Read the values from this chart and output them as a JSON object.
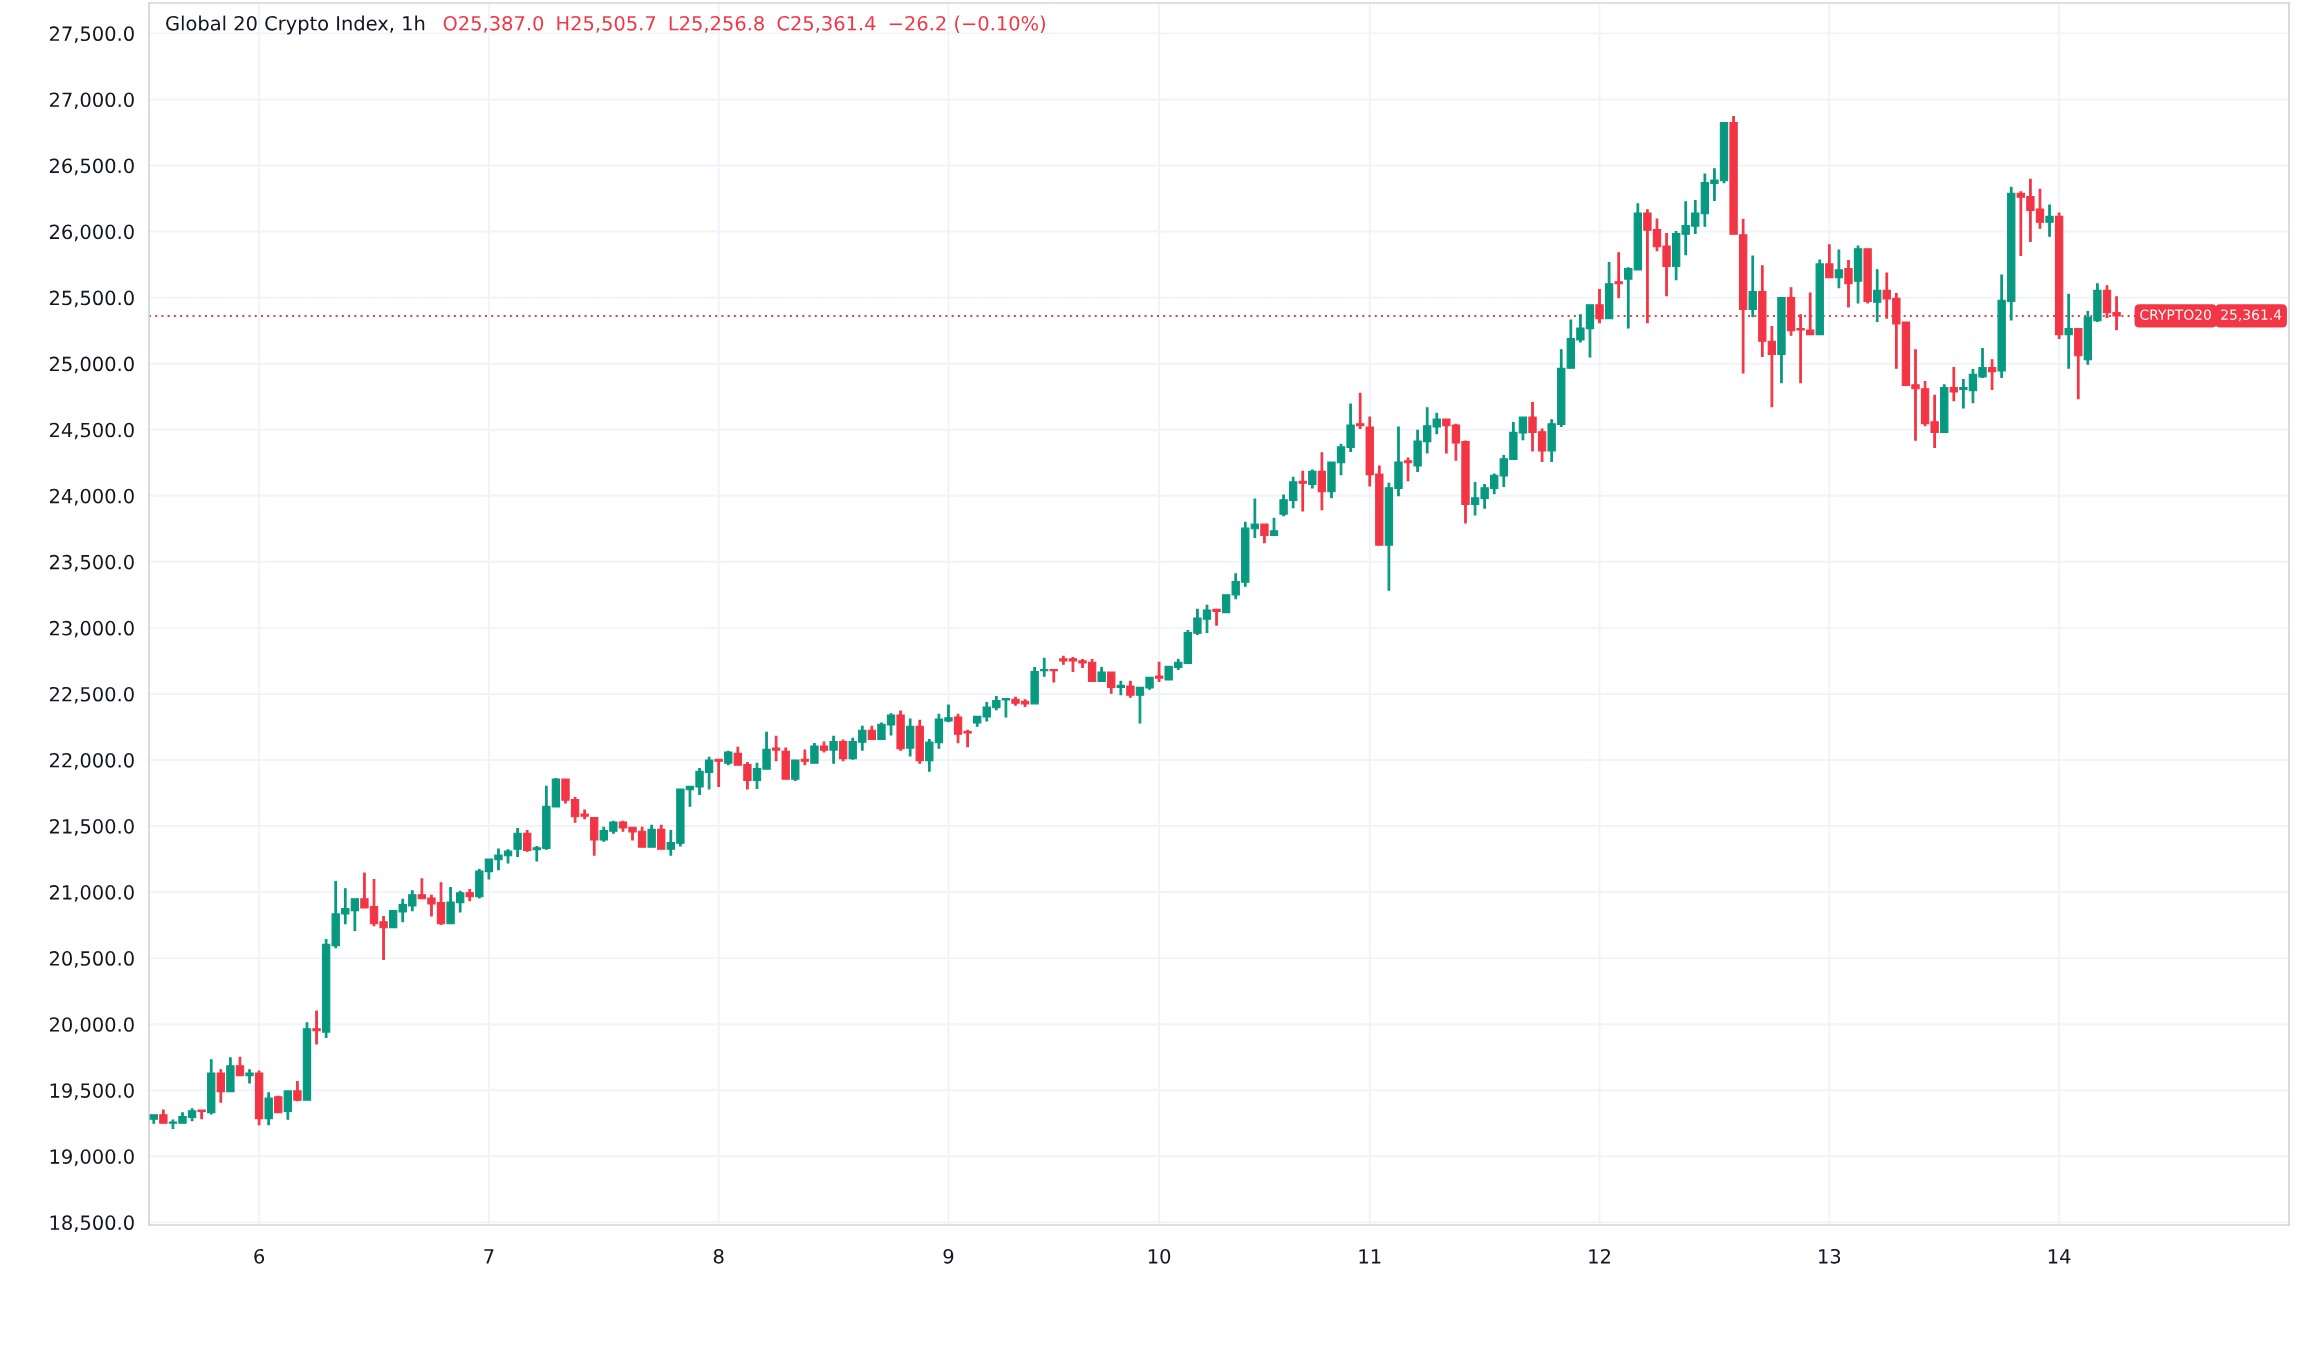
{
  "chart_data": {
    "type": "candlestick",
    "title": "Global 20 Crypto Index, 1h",
    "annotations": [
      "O25,387.0",
      "H25,505.7",
      "L25,256.8",
      "C25,361.4",
      "−26.2 (−0.10%)",
      {
        "text": "25,361.4",
        "y": 25361.4
      }
    ],
    "categories": [
      null,
      null,
      null,
      null,
      null,
      null,
      null,
      null,
      null,
      null,
      null,
      "6",
      null,
      null,
      null,
      null,
      null,
      null,
      null,
      null,
      null,
      null,
      null,
      null,
      null,
      null,
      null,
      null,
      null,
      null,
      null,
      null,
      null,
      null,
      null,
      "7",
      null,
      null,
      null,
      null,
      null,
      null,
      null,
      null,
      null,
      null,
      null,
      null,
      null,
      null,
      null,
      null,
      null,
      null,
      null,
      null,
      null,
      null,
      null,
      "8",
      null,
      null,
      null,
      null,
      null,
      null,
      null,
      null,
      null,
      null,
      null,
      null,
      null,
      null,
      null,
      null,
      null,
      null,
      null,
      null,
      null,
      null,
      null,
      "9",
      null,
      null,
      null,
      null,
      null,
      null,
      null,
      null,
      null,
      null,
      null,
      null,
      null,
      null,
      null,
      null,
      null,
      null,
      null,
      null,
      null,
      "10",
      null,
      null,
      null,
      null,
      null,
      null,
      null,
      null,
      null,
      null,
      null,
      null,
      null,
      null,
      null,
      null,
      null,
      null,
      null,
      null,
      null,
      "11",
      null,
      null,
      null,
      null,
      null,
      null,
      null,
      null,
      null,
      null,
      null,
      null,
      null,
      null,
      null,
      null,
      null,
      null,
      null,
      null,
      null,
      null,
      null,
      "12",
      null,
      null,
      null,
      null,
      null,
      null,
      null,
      null,
      null,
      null,
      null,
      null,
      null,
      null,
      null,
      null,
      null,
      null,
      null,
      null,
      null,
      null,
      null,
      "13",
      null,
      null,
      null,
      null,
      null,
      null,
      null,
      null,
      null,
      null,
      null,
      null,
      null,
      null,
      null,
      null,
      null,
      null,
      null,
      null,
      null,
      null,
      null,
      "14",
      null,
      null,
      null,
      null,
      null,
      null
    ],
    "ohlc": [
      [
        19280,
        19315,
        19250,
        19315
      ],
      [
        19315,
        19350,
        19250,
        19250
      ],
      [
        19250,
        19275,
        19210,
        19260
      ],
      [
        19250,
        19330,
        19250,
        19300
      ],
      [
        19295,
        19360,
        19270,
        19345
      ],
      [
        19350,
        19350,
        19285,
        19340
      ],
      [
        19330,
        19730,
        19320,
        19630
      ],
      [
        19630,
        19655,
        19410,
        19490
      ],
      [
        19490,
        19745,
        19490,
        19685
      ],
      [
        19685,
        19750,
        19610,
        19610
      ],
      [
        19610,
        19655,
        19555,
        19630
      ],
      [
        19630,
        19645,
        19240,
        19285
      ],
      [
        19285,
        19480,
        19240,
        19440
      ],
      [
        19450,
        19455,
        19330,
        19330
      ],
      [
        19340,
        19495,
        19280,
        19495
      ],
      [
        19495,
        19565,
        19420,
        19425
      ],
      [
        19425,
        20010,
        19425,
        19965
      ],
      [
        19965,
        20100,
        19850,
        19950
      ],
      [
        19940,
        20640,
        19900,
        20605
      ],
      [
        20595,
        21080,
        20580,
        20835
      ],
      [
        20835,
        21025,
        20760,
        20875
      ],
      [
        20860,
        20950,
        20710,
        20950
      ],
      [
        20950,
        21145,
        20880,
        20880
      ],
      [
        20890,
        21095,
        20745,
        20760
      ],
      [
        20775,
        20815,
        20490,
        20730
      ],
      [
        20730,
        20860,
        20730,
        20860
      ],
      [
        20850,
        20945,
        20775,
        20905
      ],
      [
        20895,
        21010,
        20860,
        20980
      ],
      [
        20980,
        21100,
        20950,
        20950
      ],
      [
        20955,
        20975,
        20820,
        20910
      ],
      [
        20920,
        21070,
        20755,
        20760
      ],
      [
        20760,
        21035,
        20760,
        20925
      ],
      [
        20920,
        21005,
        20850,
        20995
      ],
      [
        20995,
        21020,
        20935,
        20965
      ],
      [
        20965,
        21170,
        20955,
        21160
      ],
      [
        21155,
        21250,
        21100,
        21250
      ],
      [
        21245,
        21325,
        21170,
        21280
      ],
      [
        21275,
        21320,
        21220,
        21310
      ],
      [
        21325,
        21480,
        21270,
        21445
      ],
      [
        21445,
        21465,
        21310,
        21315
      ],
      [
        21320,
        21345,
        21235,
        21335
      ],
      [
        21330,
        21800,
        21325,
        21650
      ],
      [
        21645,
        21860,
        21645,
        21855
      ],
      [
        21855,
        21855,
        21675,
        21695
      ],
      [
        21700,
        21715,
        21530,
        21570
      ],
      [
        21590,
        21620,
        21555,
        21575
      ],
      [
        21565,
        21565,
        21280,
        21395
      ],
      [
        21395,
        21490,
        21385,
        21465
      ],
      [
        21460,
        21535,
        21445,
        21530
      ],
      [
        21530,
        21535,
        21460,
        21485
      ],
      [
        21490,
        21490,
        21395,
        21455
      ],
      [
        21460,
        21490,
        21340,
        21340
      ],
      [
        21340,
        21505,
        21340,
        21475
      ],
      [
        21475,
        21505,
        21325,
        21325
      ],
      [
        21325,
        21465,
        21280,
        21375
      ],
      [
        21370,
        21780,
        21350,
        21780
      ],
      [
        21775,
        21800,
        21650,
        21800
      ],
      [
        21795,
        21935,
        21740,
        21915
      ],
      [
        21905,
        22020,
        21780,
        22000
      ],
      [
        22005,
        22005,
        21800,
        21990
      ],
      [
        21975,
        22065,
        21965,
        22060
      ],
      [
        22050,
        22095,
        21960,
        21960
      ],
      [
        21965,
        21980,
        21780,
        21845
      ],
      [
        21845,
        21975,
        21785,
        21935
      ],
      [
        21930,
        22210,
        21930,
        22080
      ],
      [
        22090,
        22180,
        21995,
        22075
      ],
      [
        22065,
        22090,
        21855,
        21855
      ],
      [
        21855,
        22000,
        21845,
        22000
      ],
      [
        22005,
        22075,
        21965,
        21990
      ],
      [
        21975,
        22125,
        21975,
        22105
      ],
      [
        22105,
        22135,
        22060,
        22075
      ],
      [
        22075,
        22180,
        21975,
        22140
      ],
      [
        22140,
        22150,
        21995,
        22010
      ],
      [
        22010,
        22165,
        22005,
        22140
      ],
      [
        22135,
        22255,
        22075,
        22225
      ],
      [
        22225,
        22255,
        22155,
        22155
      ],
      [
        22155,
        22280,
        22155,
        22270
      ],
      [
        22265,
        22350,
        22190,
        22340
      ],
      [
        22340,
        22370,
        22075,
        22085
      ],
      [
        22090,
        22310,
        22030,
        22255
      ],
      [
        22255,
        22300,
        21975,
        21995
      ],
      [
        21995,
        22155,
        21915,
        22135
      ],
      [
        22130,
        22345,
        22090,
        22310
      ],
      [
        22295,
        22415,
        22290,
        22320
      ],
      [
        22325,
        22345,
        22130,
        22195
      ],
      [
        22215,
        22225,
        22100,
        22205
      ],
      [
        22280,
        22330,
        22255,
        22330
      ],
      [
        22325,
        22435,
        22295,
        22400
      ],
      [
        22395,
        22480,
        22380,
        22450
      ],
      [
        22455,
        22465,
        22325,
        22465
      ],
      [
        22460,
        22475,
        22415,
        22430
      ],
      [
        22445,
        22455,
        22405,
        22425
      ],
      [
        22425,
        22700,
        22425,
        22670
      ],
      [
        22675,
        22770,
        22635,
        22685
      ],
      [
        22685,
        22685,
        22590,
        22675
      ],
      [
        22765,
        22785,
        22725,
        22750
      ],
      [
        22765,
        22775,
        22670,
        22750
      ],
      [
        22750,
        22760,
        22700,
        22735
      ],
      [
        22740,
        22760,
        22595,
        22595
      ],
      [
        22595,
        22700,
        22595,
        22665
      ],
      [
        22665,
        22665,
        22505,
        22550
      ],
      [
        22550,
        22595,
        22495,
        22565
      ],
      [
        22560,
        22595,
        22475,
        22490
      ],
      [
        22490,
        22550,
        22280,
        22550
      ],
      [
        22545,
        22625,
        22535,
        22625
      ],
      [
        22635,
        22740,
        22595,
        22620
      ],
      [
        22605,
        22710,
        22605,
        22710
      ],
      [
        22700,
        22760,
        22685,
        22740
      ],
      [
        22730,
        22980,
        22730,
        22965
      ],
      [
        22960,
        23140,
        22950,
        23075
      ],
      [
        23065,
        23170,
        22965,
        23135
      ],
      [
        23140,
        23140,
        23020,
        23125
      ],
      [
        23115,
        23250,
        23115,
        23250
      ],
      [
        23250,
        23410,
        23220,
        23350
      ],
      [
        23345,
        23800,
        23315,
        23755
      ],
      [
        23750,
        23975,
        23685,
        23785
      ],
      [
        23785,
        23785,
        23645,
        23700
      ],
      [
        23700,
        23830,
        23700,
        23735
      ],
      [
        23860,
        24005,
        23850,
        23970
      ],
      [
        23965,
        24140,
        23910,
        24105
      ],
      [
        24110,
        24185,
        23885,
        24095
      ],
      [
        24085,
        24195,
        24060,
        24185
      ],
      [
        24185,
        24325,
        23895,
        24030
      ],
      [
        24030,
        24255,
        23985,
        24255
      ],
      [
        24250,
        24390,
        24160,
        24370
      ],
      [
        24365,
        24695,
        24335,
        24535
      ],
      [
        24545,
        24775,
        24510,
        24530
      ],
      [
        24520,
        24595,
        24075,
        24160
      ],
      [
        24165,
        24225,
        23625,
        23625
      ],
      [
        23625,
        24095,
        23285,
        24060
      ],
      [
        24055,
        24520,
        24000,
        24255
      ],
      [
        24265,
        24285,
        24115,
        24250
      ],
      [
        24225,
        24495,
        24185,
        24415
      ],
      [
        24410,
        24665,
        24325,
        24530
      ],
      [
        24520,
        24625,
        24470,
        24580
      ],
      [
        24580,
        24580,
        24325,
        24530
      ],
      [
        24535,
        24540,
        24270,
        24400
      ],
      [
        24410,
        24415,
        23795,
        23935
      ],
      [
        23935,
        24100,
        23855,
        23985
      ],
      [
        23980,
        24085,
        23905,
        24060
      ],
      [
        24055,
        24165,
        24015,
        24155
      ],
      [
        24150,
        24305,
        24070,
        24280
      ],
      [
        24275,
        24555,
        24275,
        24480
      ],
      [
        24475,
        24595,
        24425,
        24595
      ],
      [
        24595,
        24705,
        24340,
        24480
      ],
      [
        24485,
        24505,
        24260,
        24340
      ],
      [
        24340,
        24575,
        24260,
        24545
      ],
      [
        24540,
        25105,
        24525,
        24965
      ],
      [
        24965,
        25330,
        24965,
        25190
      ],
      [
        25180,
        25370,
        25165,
        25270
      ],
      [
        25265,
        25445,
        25050,
        25445
      ],
      [
        25445,
        25560,
        25310,
        25340
      ],
      [
        25340,
        25765,
        25340,
        25605
      ],
      [
        25620,
        25840,
        25500,
        25605
      ],
      [
        25640,
        25725,
        25270,
        25720
      ],
      [
        25710,
        26210,
        25710,
        26140
      ],
      [
        26140,
        26165,
        25310,
        26010
      ],
      [
        26015,
        26095,
        25855,
        25885
      ],
      [
        25890,
        25985,
        25515,
        25735
      ],
      [
        25735,
        26000,
        25635,
        25985
      ],
      [
        25980,
        26225,
        25825,
        26045
      ],
      [
        26040,
        26235,
        25985,
        26140
      ],
      [
        26135,
        26435,
        26040,
        26370
      ],
      [
        26365,
        26475,
        26235,
        26390
      ],
      [
        26385,
        26825,
        26370,
        26825
      ],
      [
        26825,
        26870,
        25980,
        25980
      ],
      [
        25975,
        26090,
        24930,
        25410
      ],
      [
        25410,
        25815,
        25355,
        25545
      ],
      [
        25545,
        25740,
        25055,
        25170
      ],
      [
        25170,
        25280,
        24675,
        25070
      ],
      [
        25070,
        25500,
        24855,
        25500
      ],
      [
        25500,
        25575,
        25215,
        25250
      ],
      [
        25265,
        25370,
        24855,
        25255
      ],
      [
        25255,
        25535,
        25220,
        25220
      ],
      [
        25220,
        25785,
        25220,
        25755
      ],
      [
        25755,
        25900,
        25650,
        25650
      ],
      [
        25650,
        25860,
        25575,
        25710
      ],
      [
        25720,
        25780,
        25430,
        25605
      ],
      [
        25625,
        25890,
        25460,
        25870
      ],
      [
        25870,
        25870,
        25460,
        25470
      ],
      [
        25465,
        25710,
        25320,
        25555
      ],
      [
        25555,
        25685,
        25345,
        25490
      ],
      [
        25495,
        25530,
        24965,
        25300
      ],
      [
        25315,
        25315,
        24835,
        24835
      ],
      [
        24840,
        25105,
        24420,
        24810
      ],
      [
        24810,
        24865,
        24530,
        24545
      ],
      [
        24560,
        24760,
        24365,
        24480
      ],
      [
        24480,
        24840,
        24480,
        24820
      ],
      [
        24820,
        24970,
        24720,
        24785
      ],
      [
        24805,
        24880,
        24665,
        24820
      ],
      [
        24795,
        24955,
        24705,
        24920
      ],
      [
        24900,
        25115,
        24895,
        24970
      ],
      [
        24970,
        25030,
        24805,
        24940
      ],
      [
        24945,
        25670,
        24895,
        25480
      ],
      [
        25470,
        26335,
        25330,
        26290
      ],
      [
        26290,
        26300,
        25820,
        26260
      ],
      [
        26265,
        26395,
        25925,
        26160
      ],
      [
        26170,
        26320,
        26025,
        26070
      ],
      [
        26070,
        26200,
        25965,
        26115
      ],
      [
        26115,
        26140,
        25190,
        25220
      ],
      [
        25220,
        25525,
        24965,
        25265
      ],
      [
        25265,
        25265,
        24735,
        25060
      ],
      [
        25030,
        25395,
        24995,
        25350
      ],
      [
        25325,
        25605,
        25320,
        25555
      ],
      [
        25555,
        25590,
        25350,
        25385
      ],
      [
        25387.0,
        25505.7,
        25256.8,
        25361.4
      ]
    ],
    "colors": [
      "#089981",
      "#f23645",
      "#089981",
      "#089981",
      "#089981",
      "#f23645",
      "#089981",
      "#f23645",
      "#089981",
      "#f23645",
      "#089981",
      "#f23645",
      "#089981",
      "#f23645",
      "#089981",
      "#f23645",
      "#089981",
      "#f23645",
      "#089981",
      "#089981",
      "#089981",
      "#089981",
      "#f23645",
      "#f23645",
      "#f23645",
      "#089981",
      "#089981",
      "#089981",
      "#f23645",
      "#f23645",
      "#f23645",
      "#089981",
      "#089981",
      "#f23645",
      "#089981",
      "#089981",
      "#089981",
      "#089981",
      "#089981",
      "#f23645",
      "#089981",
      "#089981",
      "#089981",
      "#f23645",
      "#f23645",
      "#f23645",
      "#f23645",
      "#089981",
      "#089981",
      "#f23645",
      "#f23645",
      "#f23645",
      "#089981",
      "#f23645",
      "#089981",
      "#089981",
      "#089981",
      "#089981",
      "#089981",
      "#f23645",
      "#089981",
      "#f23645",
      "#f23645",
      "#089981",
      "#089981",
      "#f23645",
      "#f23645",
      "#089981",
      "#f23645",
      "#089981",
      "#f23645",
      "#089981",
      "#f23645",
      "#089981",
      "#089981",
      "#f23645",
      "#089981",
      "#089981",
      "#f23645",
      "#089981",
      "#f23645",
      "#089981",
      "#089981",
      "#089981",
      "#f23645",
      "#f23645",
      "#089981",
      "#089981",
      "#089981",
      "#089981",
      "#f23645",
      "#f23645",
      "#089981",
      "#089981",
      "#f23645",
      "#f23645",
      "#f23645",
      "#f23645",
      "#f23645",
      "#089981",
      "#f23645",
      "#089981",
      "#f23645",
      "#089981",
      "#089981",
      "#f23645",
      "#089981",
      "#089981",
      "#089981",
      "#089981",
      "#089981",
      "#f23645",
      "#089981",
      "#089981",
      "#089981",
      "#089981",
      "#f23645",
      "#089981",
      "#089981",
      "#089981",
      "#f23645",
      "#089981",
      "#f23645",
      "#089981",
      "#089981",
      "#089981",
      "#f23645",
      "#f23645",
      "#f23645",
      "#089981",
      "#089981",
      "#f23645",
      "#089981",
      "#089981",
      "#089981",
      "#f23645",
      "#f23645",
      "#f23645",
      "#089981",
      "#089981",
      "#089981",
      "#089981",
      "#089981",
      "#089981",
      "#f23645",
      "#f23645",
      "#089981",
      "#089981",
      "#089981",
      "#089981",
      "#089981",
      "#f23645",
      "#089981",
      "#f23645",
      "#089981",
      "#089981",
      "#f23645",
      "#f23645",
      "#f23645",
      "#089981",
      "#089981",
      "#089981",
      "#089981",
      "#089981",
      "#089981",
      "#f23645",
      "#f23645",
      "#089981",
      "#f23645",
      "#f23645",
      "#089981",
      "#f23645",
      "#f23645",
      "#f23645",
      "#089981",
      "#f23645",
      "#089981",
      "#f23645",
      "#089981",
      "#f23645",
      "#089981",
      "#f23645",
      "#f23645",
      "#f23645",
      "#f23645",
      "#f23645",
      "#f23645",
      "#089981",
      "#f23645",
      "#089981",
      "#089981",
      "#089981",
      "#f23645",
      "#089981",
      "#089981",
      "#f23645",
      "#f23645",
      "#f23645",
      "#089981",
      "#f23645",
      "#089981",
      "#f23645",
      "#089981",
      "#089981",
      "#f23645",
      "#f23645"
    ],
    "ylim": [
      18480,
      27730
    ],
    "yticks": [
      {
        "value": 18500,
        "label": "18,500.0"
      },
      {
        "value": 19000,
        "label": "19,000.0"
      },
      {
        "value": 19500,
        "label": "19,500.0"
      },
      {
        "value": 20000,
        "label": "20,000.0"
      },
      {
        "value": 20500,
        "label": "20,500.0"
      },
      {
        "value": 21000,
        "label": "21,000.0"
      },
      {
        "value": 21500,
        "label": "21,500.0"
      },
      {
        "value": 22000,
        "label": "22,000.0"
      },
      {
        "value": 22500,
        "label": "22,500.0"
      },
      {
        "value": 23000,
        "label": "23,000.0"
      },
      {
        "value": 23500,
        "label": "23,500.0"
      },
      {
        "value": 24000,
        "label": "24,000.0"
      },
      {
        "value": 24500,
        "label": "24,500.0"
      },
      {
        "value": 25000,
        "label": "25,000.0"
      },
      {
        "value": 25500,
        "label": "25,500.0"
      },
      {
        "value": 26000,
        "label": "26,000.0"
      },
      {
        "value": 26500,
        "label": "26,500.0"
      },
      {
        "value": 27000,
        "label": "27,000.0"
      },
      {
        "value": 27500,
        "label": "27,500.0"
      }
    ],
    "ref_lines": [
      {
        "axis": "y",
        "value": 25361.4,
        "label": "CRYPTO20",
        "color": "#f23645",
        "line_style": "dotted"
      }
    ],
    "grid": true
  }
}
